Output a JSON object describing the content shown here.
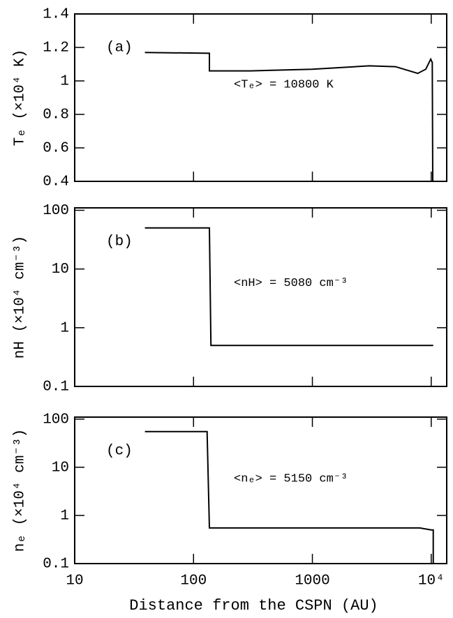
{
  "chart_data": [
    {
      "type": "line",
      "ylabel": "Tₑ (×10⁴ K)",
      "panel_label": "(a)",
      "annotation": "<Tₑ> = 10800 K",
      "x": [
        39,
        136,
        136,
        300,
        1000,
        3000,
        5000,
        7700,
        9000,
        9900,
        10200,
        10300
      ],
      "series": [
        {
          "name": "Te",
          "color": "#000000",
          "values": [
            1.17,
            1.165,
            1.06,
            1.06,
            1.07,
            1.09,
            1.085,
            1.045,
            1.07,
            1.13,
            1.11,
            0.4
          ]
        }
      ],
      "xlim": [
        10,
        13500
      ],
      "log_x": true,
      "xticks": [
        10,
        100,
        1000,
        {
          "value": 10000,
          "label": "10⁴"
        }
      ],
      "ylim": [
        0.4,
        1.4
      ],
      "yticks": [
        0.4,
        0.6,
        0.8,
        1,
        1.2,
        1.4
      ],
      "log_y": false
    },
    {
      "type": "line",
      "ylabel": "nH (×10⁴ cm⁻³)",
      "panel_label": "(b)",
      "annotation": "<nH> = 5080 cm⁻³",
      "x": [
        39,
        136,
        140,
        10400
      ],
      "series": [
        {
          "name": "nH",
          "color": "#000000",
          "values": [
            50,
            50,
            0.5,
            0.5
          ]
        }
      ],
      "xlim": [
        10,
        13500
      ],
      "log_x": true,
      "xticks": [
        10,
        100,
        1000,
        {
          "value": 10000,
          "label": "10⁴"
        }
      ],
      "ylim": [
        0.1,
        110
      ],
      "yticks": [
        0.1,
        1,
        10,
        100
      ],
      "log_y": true
    },
    {
      "type": "line",
      "ylabel": "nₑ (×10⁴ cm⁻³)",
      "panel_label": "(c)",
      "annotation": "<nₑ> = 5150 cm⁻³",
      "xlabel": "Distance from the CSPN (AU)",
      "x": [
        39,
        130,
        136,
        8000,
        10000,
        10400,
        10400
      ],
      "series": [
        {
          "name": "ne",
          "color": "#000000",
          "values": [
            55,
            55,
            0.55,
            0.55,
            0.5,
            0.5,
            0.1
          ]
        }
      ],
      "xlim": [
        10,
        13500
      ],
      "log_x": true,
      "xticks": [
        10,
        100,
        1000,
        {
          "value": 10000,
          "label": "10⁴"
        }
      ],
      "ylim": [
        0.1,
        110
      ],
      "yticks": [
        0.1,
        1,
        10,
        100
      ],
      "log_y": true
    }
  ]
}
